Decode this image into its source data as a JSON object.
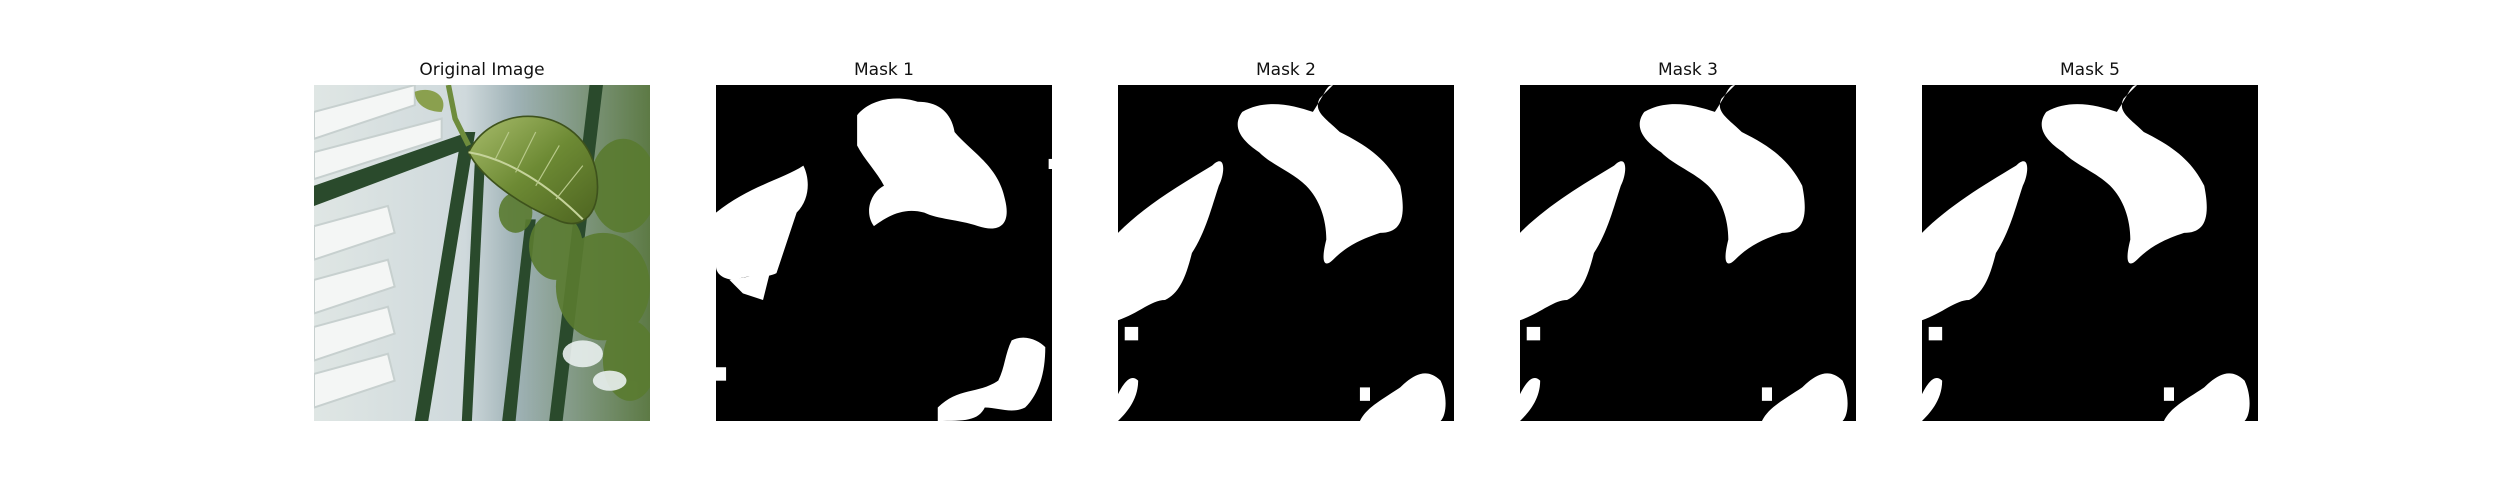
{
  "panels": [
    {
      "title": "Original Image",
      "kind": "photo"
    },
    {
      "title": "Mask 1",
      "kind": "mask"
    },
    {
      "title": "Mask 2",
      "kind": "mask"
    },
    {
      "title": "Mask 3",
      "kind": "mask"
    },
    {
      "title": "Mask 5",
      "kind": "mask"
    }
  ],
  "colors": {
    "mask_foreground": "#ffffff",
    "mask_background": "#000000",
    "leaf": "#6f8a3a",
    "foliage": "#4f6e2c",
    "greenhouse_frame": "#244028",
    "glass": "#e6ece8"
  }
}
